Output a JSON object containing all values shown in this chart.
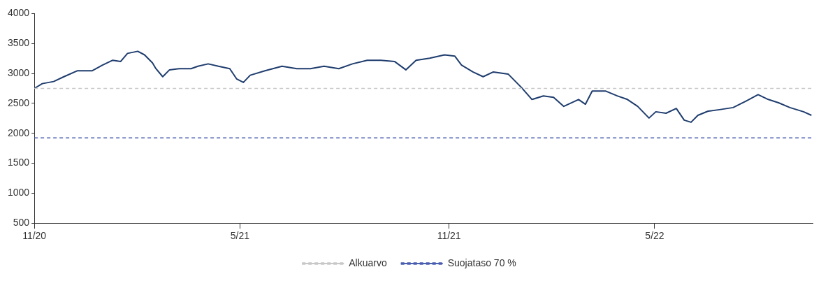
{
  "chart_data": {
    "type": "line",
    "x": [
      "2020-11-01",
      "2020-11-08",
      "2020-11-18",
      "2020-11-27",
      "2020-12-09",
      "2020-12-22",
      "2020-12-31",
      "2021-01-09",
      "2021-01-16",
      "2021-01-22",
      "2021-01-31",
      "2021-02-06",
      "2021-02-13",
      "2021-02-16",
      "2021-02-22",
      "2021-02-28",
      "2021-03-09",
      "2021-03-19",
      "2021-03-25",
      "2021-04-03",
      "2021-04-12",
      "2021-04-22",
      "2021-04-28",
      "2021-05-04",
      "2021-05-10",
      "2021-05-23",
      "2021-06-07",
      "2021-06-20",
      "2021-07-02",
      "2021-07-14",
      "2021-07-27",
      "2021-08-08",
      "2021-08-21",
      "2021-09-02",
      "2021-09-14",
      "2021-09-24",
      "2021-10-03",
      "2021-10-15",
      "2021-10-28",
      "2021-11-06",
      "2021-11-12",
      "2021-11-22",
      "2021-12-01",
      "2021-12-10",
      "2021-12-23",
      "2022-01-04",
      "2022-01-13",
      "2022-01-23",
      "2022-02-01",
      "2022-02-10",
      "2022-02-23",
      "2022-03-01",
      "2022-03-07",
      "2022-03-19",
      "2022-03-29",
      "2022-04-07",
      "2022-04-16",
      "2022-04-26",
      "2022-05-02",
      "2022-05-11",
      "2022-05-20",
      "2022-05-27",
      "2022-06-02",
      "2022-06-08",
      "2022-06-17",
      "2022-06-27",
      "2022-07-09",
      "2022-07-21",
      "2022-07-31",
      "2022-08-09",
      "2022-08-18",
      "2022-08-28",
      "2022-09-09",
      "2022-09-16"
    ],
    "series": [
      {
        "color": "#1f3d6e",
        "values": [
          2750,
          2830,
          2865,
          2945,
          3045,
          3045,
          3140,
          3220,
          3200,
          3335,
          3370,
          3310,
          3175,
          3080,
          2945,
          3060,
          3080,
          3080,
          3120,
          3160,
          3120,
          3080,
          2910,
          2850,
          2970,
          3045,
          3120,
          3080,
          3080,
          3120,
          3080,
          3160,
          3220,
          3220,
          3200,
          3060,
          3220,
          3255,
          3310,
          3290,
          3140,
          3025,
          2945,
          3025,
          2990,
          2760,
          2565,
          2625,
          2600,
          2450,
          2565,
          2485,
          2705,
          2705,
          2625,
          2565,
          2450,
          2255,
          2360,
          2335,
          2415,
          2220,
          2185,
          2300,
          2370,
          2395,
          2430,
          2545,
          2645,
          2565,
          2510,
          2430,
          2360,
          2300
        ]
      }
    ],
    "ref_lines": [
      {
        "axis": "y",
        "value": 2750,
        "label": "Alkuarvo",
        "color": "#c8c8c8",
        "line_style": "dashed"
      },
      {
        "axis": "y",
        "value": 1925,
        "label": "Suojataso 70 %",
        "color": "#4a5fb0",
        "line_style": "dashed"
      }
    ],
    "xlim": [
      "2020-11-01",
      "2022-09-17"
    ],
    "xticks": [
      {
        "value": "2020-11-01",
        "label": "11/20"
      },
      {
        "value": "2021-05-01",
        "label": "5/21"
      },
      {
        "value": "2021-11-01",
        "label": "11/21"
      },
      {
        "value": "2022-05-01",
        "label": "5/22"
      }
    ],
    "ylim": [
      500,
      4000
    ],
    "yticks": [
      500,
      1000,
      1500,
      2000,
      2500,
      3000,
      3500,
      4000
    ],
    "grid": false,
    "legend": "bottom",
    "marker": "none",
    "line_style": "solid"
  }
}
